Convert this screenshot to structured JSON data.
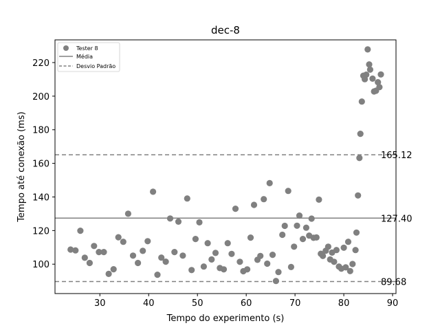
{
  "chart_data": {
    "type": "scatter",
    "title": "dec-8",
    "xlabel": "Tempo do experimento (s)",
    "ylabel": "Tempo até conexão (ms)",
    "xlim": [
      20.8,
      90.7
    ],
    "ylim": [
      82.5,
      233.5
    ],
    "xticks": [
      30,
      40,
      50,
      60,
      70,
      80,
      90
    ],
    "yticks": [
      100,
      120,
      140,
      160,
      180,
      200,
      220
    ],
    "grid": false,
    "legend_position": "upper-left",
    "legend": {
      "scatter_label": "Tester 8",
      "mean_label": "Média",
      "std_label": "Desvio Padrão"
    },
    "colors": {
      "points": "#808080",
      "lines": "#808080"
    },
    "reference_lines": {
      "mean": 127.4,
      "upper": 165.12,
      "lower": 89.68,
      "mean_label": "127.40",
      "upper_label": "165.12",
      "lower_label": "89.68"
    },
    "series": [
      {
        "name": "Tester 8",
        "points": [
          [
            24.0,
            108.7
          ],
          [
            25.0,
            108.2
          ],
          [
            26.0,
            119.9
          ],
          [
            26.9,
            103.8
          ],
          [
            27.9,
            100.7
          ],
          [
            28.8,
            110.8
          ],
          [
            29.8,
            107.2
          ],
          [
            30.8,
            107.2
          ],
          [
            31.8,
            94.2
          ],
          [
            32.8,
            97.0
          ],
          [
            33.8,
            116.0
          ],
          [
            34.8,
            113.3
          ],
          [
            35.8,
            130.0
          ],
          [
            36.8,
            105.1
          ],
          [
            37.8,
            100.7
          ],
          [
            38.8,
            107.9
          ],
          [
            39.8,
            113.7
          ],
          [
            40.9,
            143.1
          ],
          [
            41.8,
            93.7
          ],
          [
            42.6,
            103.9
          ],
          [
            43.5,
            101.5
          ],
          [
            44.4,
            127.2
          ],
          [
            45.3,
            107.2
          ],
          [
            46.1,
            125.3
          ],
          [
            47.0,
            105.1
          ],
          [
            47.9,
            139.1
          ],
          [
            48.8,
            96.5
          ],
          [
            49.6,
            115.0
          ],
          [
            50.4,
            124.9
          ],
          [
            51.3,
            98.6
          ],
          [
            52.1,
            112.5
          ],
          [
            52.9,
            102.8
          ],
          [
            53.7,
            106.7
          ],
          [
            54.6,
            97.7
          ],
          [
            55.4,
            96.9
          ],
          [
            56.2,
            112.5
          ],
          [
            57.0,
            106.1
          ],
          [
            57.8,
            133.0
          ],
          [
            58.7,
            101.4
          ],
          [
            59.4,
            95.8
          ],
          [
            60.2,
            96.9
          ],
          [
            60.9,
            115.8
          ],
          [
            61.6,
            135.3
          ],
          [
            62.3,
            102.6
          ],
          [
            62.9,
            104.9
          ],
          [
            63.6,
            138.7
          ],
          [
            64.3,
            100.3
          ],
          [
            64.8,
            148.2
          ],
          [
            65.4,
            105.6
          ],
          [
            66.1,
            90.0
          ],
          [
            66.6,
            95.3
          ],
          [
            67.4,
            117.5
          ],
          [
            67.9,
            122.8
          ],
          [
            68.6,
            143.6
          ],
          [
            69.2,
            98.3
          ],
          [
            69.8,
            110.4
          ],
          [
            70.4,
            122.9
          ],
          [
            70.9,
            128.9
          ],
          [
            71.6,
            115.0
          ],
          [
            72.3,
            121.7
          ],
          [
            72.9,
            117.0
          ],
          [
            73.4,
            127.1
          ],
          [
            73.8,
            115.7
          ],
          [
            74.4,
            115.9
          ],
          [
            74.9,
            138.4
          ],
          [
            75.3,
            106.2
          ],
          [
            75.7,
            104.9
          ],
          [
            76.3,
            108.0
          ],
          [
            76.8,
            110.4
          ],
          [
            77.2,
            102.8
          ],
          [
            77.6,
            106.9
          ],
          [
            78.0,
            101.4
          ],
          [
            78.5,
            108.4
          ],
          [
            79.0,
            98.6
          ],
          [
            79.5,
            97.3
          ],
          [
            80.0,
            109.8
          ],
          [
            80.4,
            98.1
          ],
          [
            80.9,
            113.3
          ],
          [
            81.3,
            95.9
          ],
          [
            81.8,
            100.1
          ],
          [
            82.4,
            108.4
          ],
          [
            82.6,
            118.8
          ],
          [
            82.9,
            140.9
          ],
          [
            83.2,
            163.2
          ],
          [
            83.4,
            177.6
          ],
          [
            83.7,
            196.8
          ],
          [
            84.0,
            212.2
          ],
          [
            84.3,
            210.1
          ],
          [
            84.6,
            212.8
          ],
          [
            84.9,
            227.8
          ],
          [
            85.2,
            218.9
          ],
          [
            85.4,
            215.8
          ],
          [
            85.9,
            210.4
          ],
          [
            86.2,
            202.8
          ],
          [
            86.6,
            203.2
          ],
          [
            87.0,
            208.3
          ],
          [
            87.3,
            205.4
          ],
          [
            87.6,
            212.9
          ]
        ]
      }
    ]
  }
}
